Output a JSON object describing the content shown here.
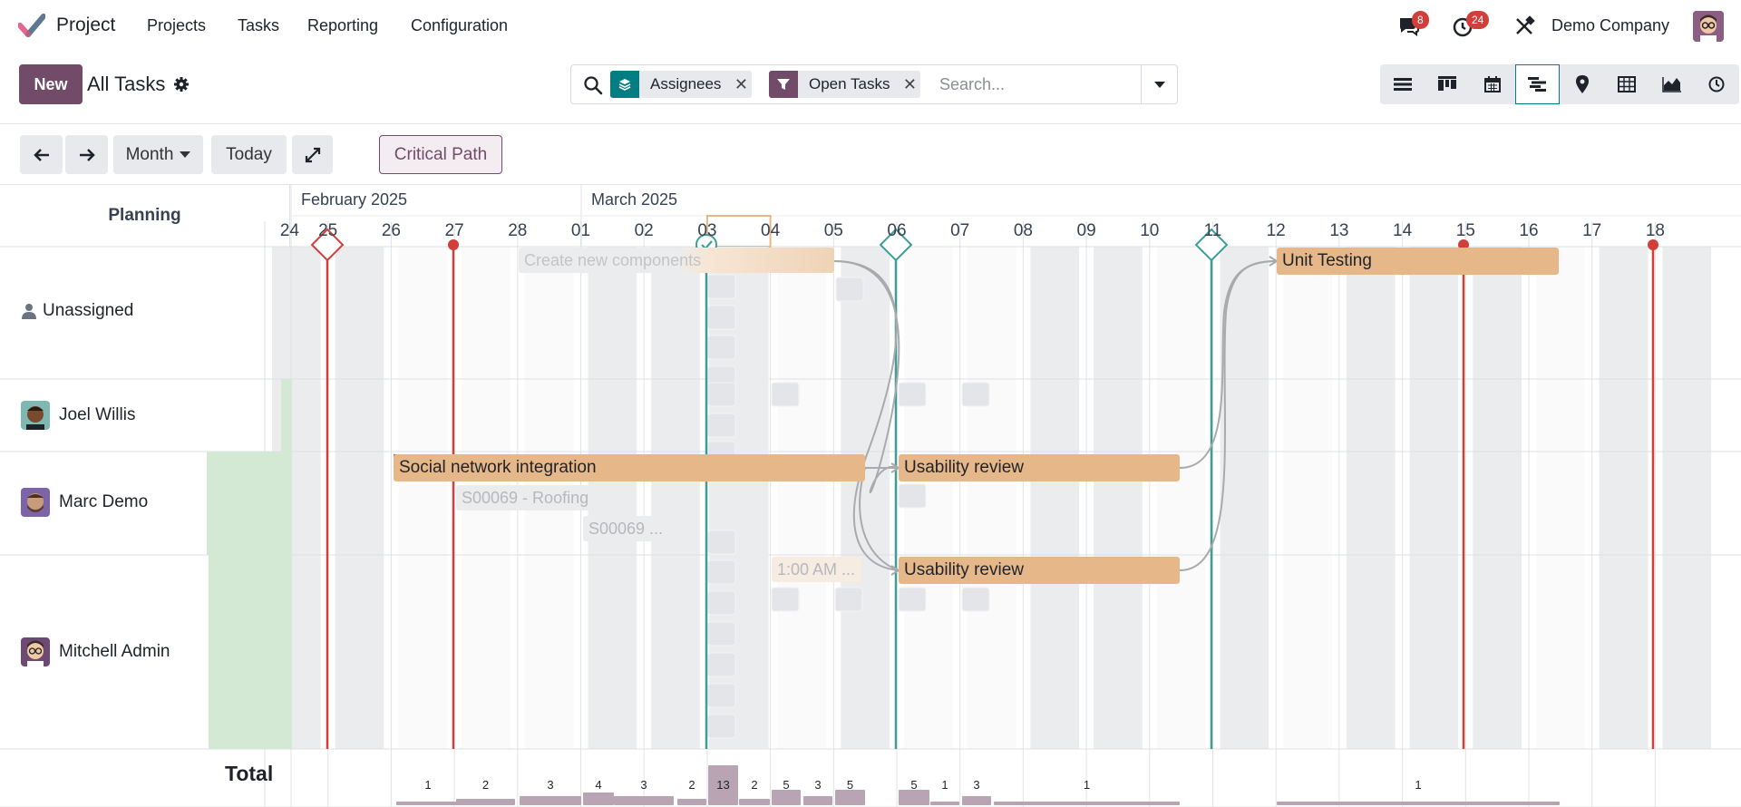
{
  "app": {
    "title": "Project"
  },
  "menu": {
    "projects": "Projects",
    "tasks": "Tasks",
    "reporting": "Reporting",
    "configuration": "Configuration"
  },
  "systray": {
    "messages_count": "8",
    "activities_count": "24",
    "company": "Demo Company"
  },
  "control": {
    "new_label": "New",
    "view_title": "All Tasks"
  },
  "search": {
    "facets": [
      {
        "label": "Assignees",
        "icon": "layers-icon"
      },
      {
        "label": "Open Tasks",
        "icon": "filter-icon"
      }
    ],
    "placeholder": "Search..."
  },
  "views": [
    "list",
    "kanban",
    "calendar",
    "gantt",
    "map",
    "pivot",
    "graph",
    "activity"
  ],
  "active_view": "gantt",
  "gantt_toolbar": {
    "scale": "Month",
    "today": "Today",
    "critical_path": "Critical Path"
  },
  "gantt": {
    "planning_header": "Planning",
    "months": [
      "February 2025",
      "March 2025"
    ],
    "days": [
      "24",
      "25",
      "26",
      "27",
      "28",
      "01",
      "02",
      "03",
      "04",
      "05",
      "06",
      "07",
      "08",
      "09",
      "10",
      "11",
      "12",
      "13",
      "14",
      "15",
      "16",
      "17",
      "18"
    ],
    "rows": [
      {
        "name": "Unassigned"
      },
      {
        "name": "Joel Willis"
      },
      {
        "name": "Marc Demo"
      },
      {
        "name": "Mitchell Admin"
      }
    ],
    "tasks": {
      "create_components": "Create new components",
      "unit_testing": "Unit Testing",
      "social_network": "Social network integration",
      "usability_1": "Usability review",
      "roofing": "S00069 - Roofing",
      "s00069_short": "S00069 ...",
      "time_1am": "1:00 AM ...",
      "usability_2": "Usability review"
    },
    "total_label": "Total",
    "totals": [
      {
        "day": "26",
        "value": "1"
      },
      {
        "day": "27",
        "value": "2"
      },
      {
        "day": "28",
        "value": "3"
      },
      {
        "day": "01",
        "value": "4"
      },
      {
        "day": "02",
        "value": "3"
      },
      {
        "day": "02b",
        "value": "2"
      },
      {
        "day": "03",
        "value": "13"
      },
      {
        "day": "04",
        "value": "2"
      },
      {
        "day": "04b",
        "value": "5"
      },
      {
        "day": "05",
        "value": "3"
      },
      {
        "day": "05b",
        "value": "5"
      },
      {
        "day": "06",
        "value": "5"
      },
      {
        "day": "07",
        "value": "1"
      },
      {
        "day": "07b",
        "value": "3"
      },
      {
        "day": "09",
        "value": "1"
      },
      {
        "day": "14",
        "value": "1"
      }
    ]
  },
  "colors": {
    "brand": "#714b67",
    "accent": "#017e84",
    "task": "#e6b889",
    "deadline": "#d23f3a"
  }
}
